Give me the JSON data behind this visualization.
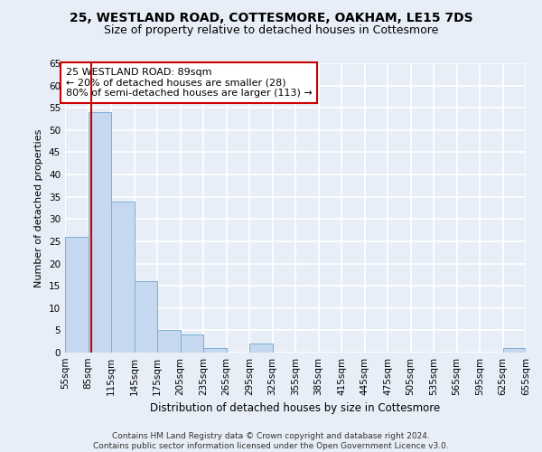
{
  "title1": "25, WESTLAND ROAD, COTTESMORE, OAKHAM, LE15 7DS",
  "title2": "Size of property relative to detached houses in Cottesmore",
  "xlabel": "Distribution of detached houses by size in Cottesmore",
  "ylabel": "Number of detached properties",
  "bin_edges": [
    55,
    85,
    115,
    145,
    175,
    205,
    235,
    265,
    295,
    325,
    355,
    385,
    415,
    445,
    475,
    505,
    535,
    565,
    595,
    625,
    655
  ],
  "bar_values": [
    26,
    54,
    34,
    16,
    5,
    4,
    1,
    0,
    2,
    0,
    0,
    0,
    0,
    0,
    0,
    0,
    0,
    0,
    0,
    1,
    0
  ],
  "bar_color": "#c5d8ef",
  "bar_edge_color": "#7bafd4",
  "property_size": 89,
  "vline_color": "#cc0000",
  "annotation_text": "25 WESTLAND ROAD: 89sqm\n← 20% of detached houses are smaller (28)\n80% of semi-detached houses are larger (113) →",
  "annotation_box_color": "white",
  "annotation_box_edge": "#cc0000",
  "ylim": [
    0,
    65
  ],
  "yticks": [
    0,
    5,
    10,
    15,
    20,
    25,
    30,
    35,
    40,
    45,
    50,
    55,
    60,
    65
  ],
  "background_color": "#e8eef7",
  "grid_color": "white",
  "footnote": "Contains HM Land Registry data © Crown copyright and database right 2024.\nContains public sector information licensed under the Open Government Licence v3.0.",
  "title1_fontsize": 10,
  "title2_fontsize": 9,
  "xlabel_fontsize": 8.5,
  "ylabel_fontsize": 8,
  "tick_fontsize": 7.5,
  "annotation_fontsize": 8,
  "footnote_fontsize": 6.5
}
